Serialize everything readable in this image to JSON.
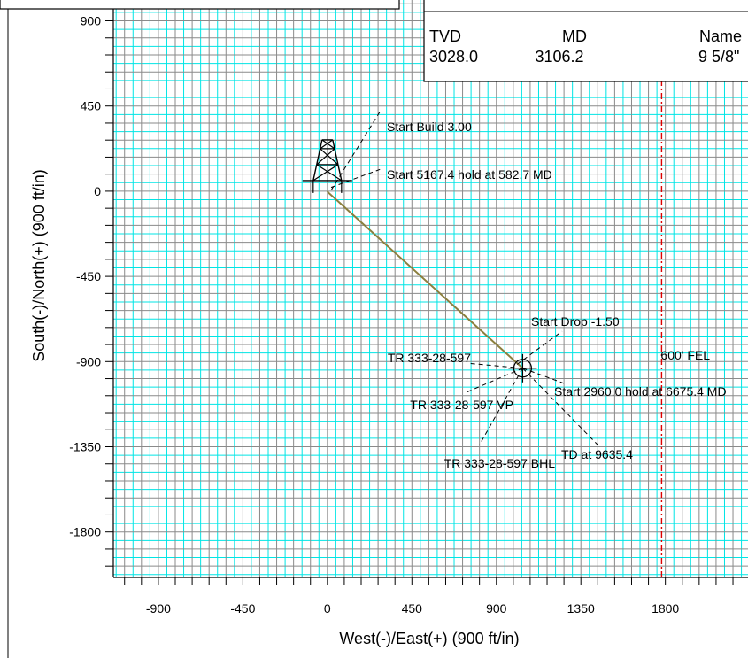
{
  "chart_data": {
    "type": "line",
    "xlabel": "West(-)/East(+)  (900 ft/in)",
    "ylabel": "South(-)/North(+)  (900 ft/in)",
    "xlim": [
      -1140,
      2240
    ],
    "ylim": [
      -2040,
      1010
    ],
    "grid": true,
    "minor_step": 45,
    "major_step": 90,
    "x_ticks": [
      -900,
      -450,
      0,
      450,
      900,
      1350,
      1800
    ],
    "y_ticks": [
      900,
      450,
      0,
      -450,
      -900,
      -1350,
      -1800
    ],
    "x_tick_labels": [
      "-900",
      "-450",
      "0",
      "450",
      "900",
      "1350",
      "1800"
    ],
    "y_tick_labels": [
      "900",
      "450",
      "0",
      "-450",
      "-900",
      "-1350",
      "-1800"
    ],
    "colors": {
      "minor_grid": "#00e5e5",
      "major_grid": "#8a8a8a",
      "well_path": "#8b7f3e",
      "lease_line": "#dd0000"
    },
    "series": [
      {
        "points": [
          [
            0,
            0
          ],
          [
            4,
            -6
          ],
          [
            1040,
            -935
          ]
        ]
      }
    ],
    "lease_line": {
      "x": 1780,
      "label": "600' FEL"
    },
    "rig_position": [
      0,
      0
    ],
    "target_position": [
      1040,
      -935
    ],
    "annotations": [
      {
        "text": "Start Build 3.00",
        "leader_from": [
          20,
          5
        ],
        "leader_to": [
          280,
          420
        ]
      },
      {
        "text": "Start 5167.4 hold at 582.7 MD",
        "leader_from": [
          20,
          20
        ],
        "leader_to": [
          280,
          115
        ]
      },
      {
        "text": "Start Drop -1.50",
        "leader_from": [
          1010,
          -915
        ],
        "leader_to": [
          1250,
          -740
        ]
      },
      {
        "text": "TR 333-28-597",
        "leader_from": [
          1040,
          -935
        ],
        "leader_to": [
          760,
          -910
        ]
      },
      {
        "text": "Start 2960.0 hold at 6675.4 MD",
        "leader_from": [
          1040,
          -935
        ],
        "leader_to": [
          1260,
          -1015
        ]
      },
      {
        "text": "TR 333-28-597 VP",
        "leader_from": [
          1040,
          -935
        ],
        "leader_to": [
          745,
          -1060
        ]
      },
      {
        "text": "TR 333-28-597 BHL",
        "leader_from": [
          1040,
          -935
        ],
        "leader_to": [
          810,
          -1340
        ]
      },
      {
        "text": "TD at 9635.4",
        "leader_from": [
          1040,
          -935
        ],
        "leader_to": [
          1440,
          -1340
        ]
      }
    ],
    "casing_table": {
      "headers": [
        "TVD",
        "MD",
        "Name"
      ],
      "rows": [
        [
          "3028.0",
          "3106.2",
          "9 5/8\""
        ]
      ]
    }
  }
}
